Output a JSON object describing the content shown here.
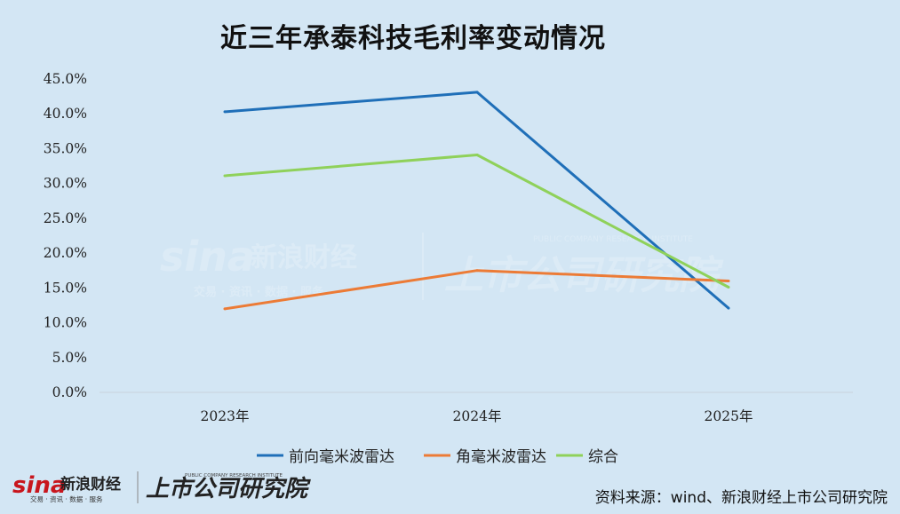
{
  "title": "近三年承泰科技毛利率变动情况",
  "source": "资料来源：wind、新浪财经上市公司研究院",
  "watermark": {
    "brand": "sina",
    "cn": "新浪财经",
    "sub": "交易 · 资讯 · 数据 · 服务",
    "institute": "上市公司研究院",
    "institute_en": "PUBLIC COMPANY RESEARCH INSTITUTE"
  },
  "chart_data": {
    "type": "line",
    "categories": [
      "2023年",
      "2024年",
      "2025年"
    ],
    "ylim": [
      0,
      45
    ],
    "yticks": [
      "0.0%",
      "5.0%",
      "10.0%",
      "15.0%",
      "20.0%",
      "25.0%",
      "30.0%",
      "35.0%",
      "40.0%",
      "45.0%"
    ],
    "grid": false,
    "legend_position": "bottom",
    "series": [
      {
        "name": "前向毫米波雷达",
        "color": "#1f6fb8",
        "values": [
          40.3,
          43.1,
          12.1
        ]
      },
      {
        "name": "角毫米波雷达",
        "color": "#ec7b36",
        "values": [
          12.0,
          17.5,
          16.0
        ]
      },
      {
        "name": "综合",
        "color": "#8fd15a",
        "values": [
          31.1,
          34.1,
          15.1
        ]
      }
    ]
  }
}
